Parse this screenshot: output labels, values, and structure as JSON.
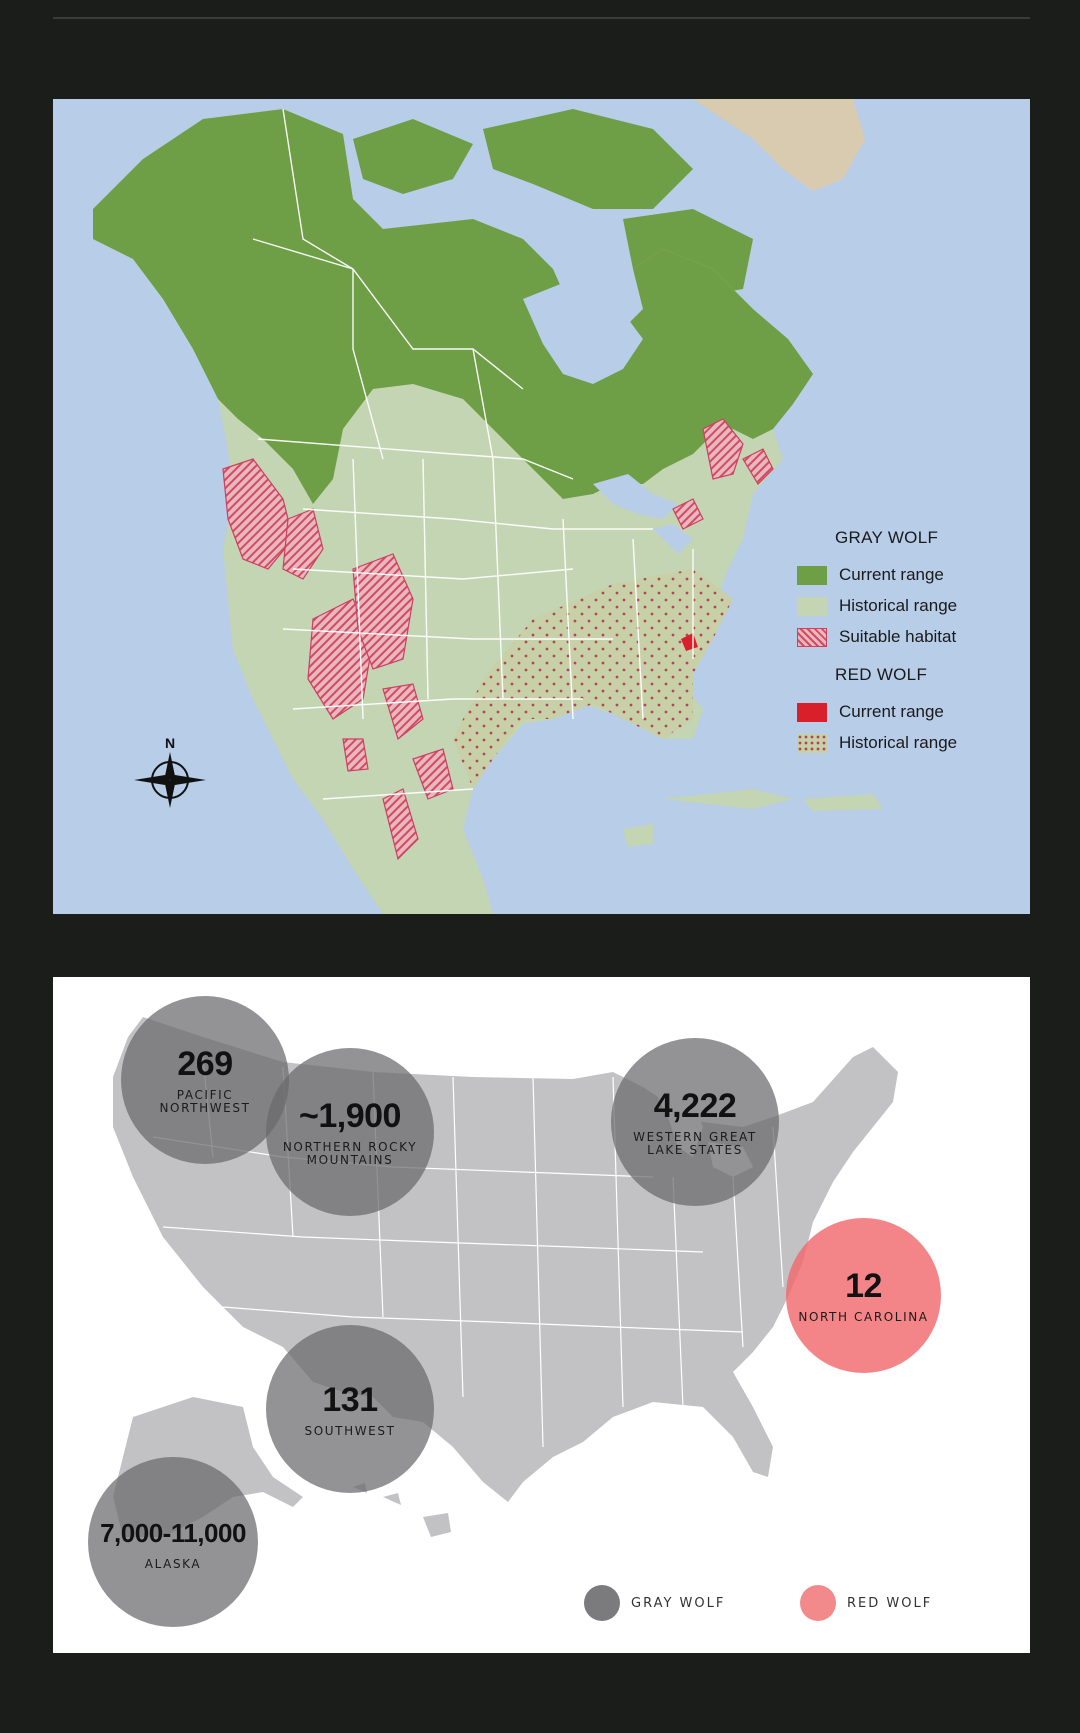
{
  "range_map": {
    "colors": {
      "ocean": "#b8cde8",
      "gray_wolf_current": "#6e9e45",
      "gray_wolf_historical": "#c4d5b3",
      "suitable_habitat": "#d44a63",
      "red_wolf_current": "#d81f2a",
      "red_wolf_historical_dots": "#b0475c"
    },
    "legend": {
      "gray_wolf": {
        "heading": "GRAY WOLF",
        "items": [
          {
            "label": "Current range",
            "icon": "solid-green-swatch"
          },
          {
            "label": "Historical range",
            "icon": "pale-green-swatch"
          },
          {
            "label": "Suitable habitat",
            "icon": "red-hatched-swatch"
          }
        ]
      },
      "red_wolf": {
        "heading": "RED WOLF",
        "items": [
          {
            "label": "Current range",
            "icon": "solid-red-swatch"
          },
          {
            "label": "Historical range",
            "icon": "dotted-swatch"
          }
        ]
      }
    },
    "compass": {
      "label": "N",
      "icon": "compass-rose-icon"
    }
  },
  "population_map": {
    "colors": {
      "gray_wolf": "#69696c",
      "red_wolf": "#f0696c",
      "land": "#c2c2c4"
    },
    "regions": [
      {
        "id": "pacific-northwest",
        "value": "269",
        "label": "PACIFIC\nNORTHWEST",
        "species": "gray"
      },
      {
        "id": "northern-rocky-mountains",
        "value": "~1,900",
        "label": "NORTHERN ROCKY\nMOUNTAINS",
        "species": "gray"
      },
      {
        "id": "western-great-lake-states",
        "value": "4,222",
        "label": "WESTERN GREAT\nLAKE STATES",
        "species": "gray"
      },
      {
        "id": "north-carolina",
        "value": "12",
        "label": "NORTH CAROLINA",
        "species": "red"
      },
      {
        "id": "southwest",
        "value": "131",
        "label": "SOUTHWEST",
        "species": "gray"
      },
      {
        "id": "alaska",
        "value": "7,000-11,000",
        "label": "ALASKA",
        "species": "gray"
      }
    ],
    "legend": {
      "gray_label": "GRAY WOLF",
      "red_label": "RED WOLF"
    }
  }
}
